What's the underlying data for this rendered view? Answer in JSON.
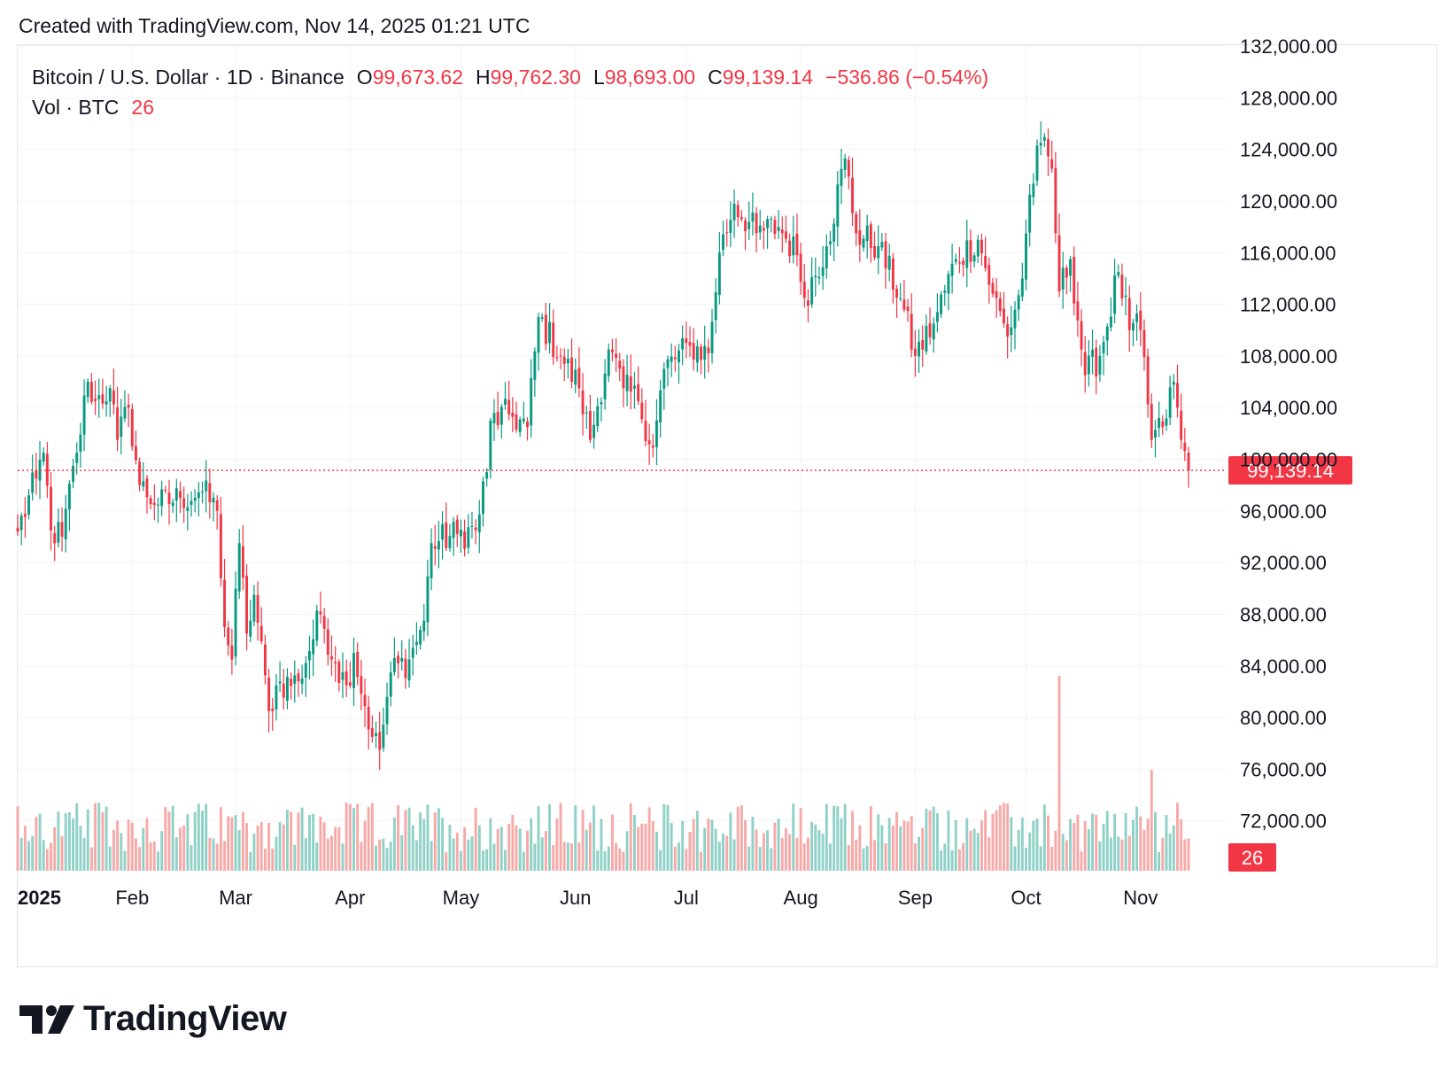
{
  "header": {
    "created_text": "Created with TradingView.com, Nov 14, 2025 01:21 UTC"
  },
  "legend": {
    "symbol": "Bitcoin / U.S. Dollar · 1D · Binance",
    "open_label": "O",
    "open": "99,673.62",
    "high_label": "H",
    "high": "99,762.30",
    "low_label": "L",
    "low": "98,693.00",
    "close_label": "C",
    "close": "99,139.14",
    "change": "−536.86 (−0.54%)",
    "vol_label": "Vol · BTC",
    "vol_value": "26"
  },
  "price_axis": {
    "tick_labels": [
      "132,000.00",
      "128,000.00",
      "124,000.00",
      "120,000.00",
      "116,000.00",
      "112,000.00",
      "108,000.00",
      "104,000.00",
      "100,000.00",
      "96,000.00",
      "92,000.00",
      "88,000.00",
      "84,000.00",
      "80,000.00",
      "76,000.00",
      "72,000.00"
    ],
    "last_price_label": "99,139.14",
    "last_volume_label": "26"
  },
  "time_axis": {
    "tick_labels": [
      "2025",
      "Feb",
      "Mar",
      "Apr",
      "May",
      "Jun",
      "Jul",
      "Aug",
      "Sep",
      "Oct",
      "Nov"
    ]
  },
  "colors": {
    "up": "#089981",
    "down": "#f23645",
    "up_volume": "#8fd1c7",
    "down_volume": "#f7a9a7",
    "grid": "#f0f3fa",
    "text": "#131722"
  },
  "chart_data": {
    "type": "candlestick",
    "title": "Bitcoin / U.S. Dollar · 1D · Binance",
    "yaxis": {
      "side": "right",
      "range": [
        68000,
        132000
      ],
      "ticks": [
        132000,
        128000,
        124000,
        120000,
        116000,
        112000,
        108000,
        104000,
        100000,
        96000,
        92000,
        88000,
        84000,
        80000,
        76000,
        72000
      ]
    },
    "xaxis": {
      "range_start": "2025-01-01",
      "range_end": "2025-11-14",
      "ticks": [
        "2025",
        "Feb",
        "Mar",
        "Apr",
        "May",
        "Jun",
        "Jul",
        "Aug",
        "Sep",
        "Oct",
        "Nov"
      ]
    },
    "last_close": 99139.14,
    "last_volume_btc": 26,
    "legend_placement": "top-left",
    "grid": true,
    "close_path": [
      {
        "date": "2025-01-01",
        "close": 94400
      },
      {
        "date": "2025-01-06",
        "close": 98500
      },
      {
        "date": "2025-01-08",
        "close": 100500
      },
      {
        "date": "2025-01-10",
        "close": 94500
      },
      {
        "date": "2025-01-13",
        "close": 94000
      },
      {
        "date": "2025-01-17",
        "close": 100500
      },
      {
        "date": "2025-01-20",
        "close": 106000
      },
      {
        "date": "2025-01-22",
        "close": 104500
      },
      {
        "date": "2025-01-26",
        "close": 105500
      },
      {
        "date": "2025-01-28",
        "close": 101500
      },
      {
        "date": "2025-01-31",
        "close": 104000
      },
      {
        "date": "2025-02-03",
        "close": 98000
      },
      {
        "date": "2025-02-08",
        "close": 96500
      },
      {
        "date": "2025-02-14",
        "close": 97000
      },
      {
        "date": "2025-02-20",
        "close": 97500
      },
      {
        "date": "2025-02-24",
        "close": 96000
      },
      {
        "date": "2025-02-26",
        "close": 87000
      },
      {
        "date": "2025-02-28",
        "close": 84500
      },
      {
        "date": "2025-03-02",
        "close": 93500
      },
      {
        "date": "2025-03-04",
        "close": 86500
      },
      {
        "date": "2025-03-06",
        "close": 89500
      },
      {
        "date": "2025-03-10",
        "close": 80500
      },
      {
        "date": "2025-03-12",
        "close": 82500
      },
      {
        "date": "2025-03-18",
        "close": 82800
      },
      {
        "date": "2025-03-24",
        "close": 88000
      },
      {
        "date": "2025-03-28",
        "close": 84200
      },
      {
        "date": "2025-03-31",
        "close": 82500
      },
      {
        "date": "2025-04-02",
        "close": 85000
      },
      {
        "date": "2025-04-07",
        "close": 78500
      },
      {
        "date": "2025-04-09",
        "close": 77500
      },
      {
        "date": "2025-04-12",
        "close": 83500
      },
      {
        "date": "2025-04-17",
        "close": 84500
      },
      {
        "date": "2025-04-21",
        "close": 87500
      },
      {
        "date": "2025-04-23",
        "close": 93500
      },
      {
        "date": "2025-04-30",
        "close": 94200
      },
      {
        "date": "2025-05-05",
        "close": 94500
      },
      {
        "date": "2025-05-08",
        "close": 99000
      },
      {
        "date": "2025-05-09",
        "close": 103000
      },
      {
        "date": "2025-05-14",
        "close": 103500
      },
      {
        "date": "2025-05-19",
        "close": 102500
      },
      {
        "date": "2025-05-22",
        "close": 111000
      },
      {
        "date": "2025-05-28",
        "close": 108000
      },
      {
        "date": "2025-06-02",
        "close": 105500
      },
      {
        "date": "2025-06-05",
        "close": 101500
      },
      {
        "date": "2025-06-10",
        "close": 108500
      },
      {
        "date": "2025-06-14",
        "close": 105500
      },
      {
        "date": "2025-06-18",
        "close": 104500
      },
      {
        "date": "2025-06-22",
        "close": 100900
      },
      {
        "date": "2025-06-25",
        "close": 107000
      },
      {
        "date": "2025-07-02",
        "close": 108800
      },
      {
        "date": "2025-07-07",
        "close": 108200
      },
      {
        "date": "2025-07-10",
        "close": 116000
      },
      {
        "date": "2025-07-14",
        "close": 119800
      },
      {
        "date": "2025-07-20",
        "close": 117500
      },
      {
        "date": "2025-07-26",
        "close": 118000
      },
      {
        "date": "2025-07-31",
        "close": 115800
      },
      {
        "date": "2025-08-02",
        "close": 112500
      },
      {
        "date": "2025-08-08",
        "close": 116500
      },
      {
        "date": "2025-08-13",
        "close": 123300
      },
      {
        "date": "2025-08-16",
        "close": 117500
      },
      {
        "date": "2025-08-22",
        "close": 116500
      },
      {
        "date": "2025-08-28",
        "close": 112500
      },
      {
        "date": "2025-09-01",
        "close": 108000
      },
      {
        "date": "2025-09-06",
        "close": 110500
      },
      {
        "date": "2025-09-12",
        "close": 115500
      },
      {
        "date": "2025-09-18",
        "close": 117000
      },
      {
        "date": "2025-09-22",
        "close": 112800
      },
      {
        "date": "2025-09-26",
        "close": 109500
      },
      {
        "date": "2025-09-30",
        "close": 114000
      },
      {
        "date": "2025-10-02",
        "close": 120500
      },
      {
        "date": "2025-10-05",
        "close": 124500
      },
      {
        "date": "2025-10-08",
        "close": 122500
      },
      {
        "date": "2025-10-10",
        "close": 113000
      },
      {
        "date": "2025-10-13",
        "close": 115500
      },
      {
        "date": "2025-10-17",
        "close": 106500
      },
      {
        "date": "2025-10-21",
        "close": 108000
      },
      {
        "date": "2025-10-26",
        "close": 114500
      },
      {
        "date": "2025-10-29",
        "close": 110000
      },
      {
        "date": "2025-11-01",
        "close": 110000
      },
      {
        "date": "2025-11-04",
        "close": 101500
      },
      {
        "date": "2025-11-07",
        "close": 102500
      },
      {
        "date": "2025-11-10",
        "close": 106000
      },
      {
        "date": "2025-11-12",
        "close": 101500
      },
      {
        "date": "2025-11-14",
        "close": 99139.14
      }
    ],
    "volume_notes": [
      {
        "date": "2025-10-10",
        "volume_btc": 85000
      },
      {
        "date": "2025-11-04",
        "volume_btc": 44000
      }
    ]
  }
}
